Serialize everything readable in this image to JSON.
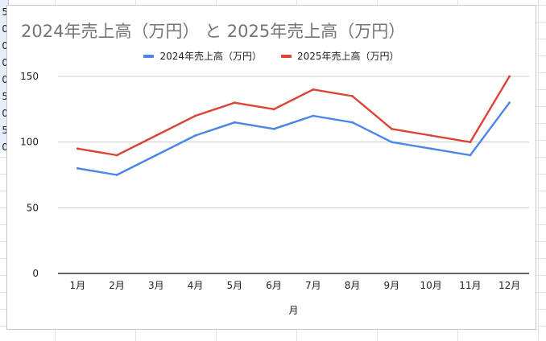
{
  "sheet": {
    "cell_fragments": [
      "5",
      "0",
      "0",
      "0",
      "0",
      "5",
      "0",
      "5",
      "0"
    ]
  },
  "chart_data": {
    "type": "line",
    "title": "2024年売上高（万円） と 2025年売上高（万円）",
    "xlabel": "月",
    "ylabel": "",
    "categories": [
      "1月",
      "2月",
      "3月",
      "4月",
      "5月",
      "6月",
      "7月",
      "8月",
      "9月",
      "10月",
      "11月",
      "12月"
    ],
    "series": [
      {
        "name": "2024年売上高（万円）",
        "color": "#4a86e8",
        "values": [
          80,
          75,
          90,
          105,
          115,
          110,
          120,
          115,
          100,
          95,
          90,
          130
        ]
      },
      {
        "name": "2025年売上高（万円）",
        "color": "#db4437",
        "values": [
          95,
          90,
          105,
          120,
          130,
          125,
          140,
          135,
          110,
          105,
          100,
          150
        ]
      }
    ],
    "ylim": [
      0,
      150
    ],
    "yticks": [
      0,
      50,
      100,
      150
    ],
    "grid": true,
    "legend_position": "top"
  }
}
